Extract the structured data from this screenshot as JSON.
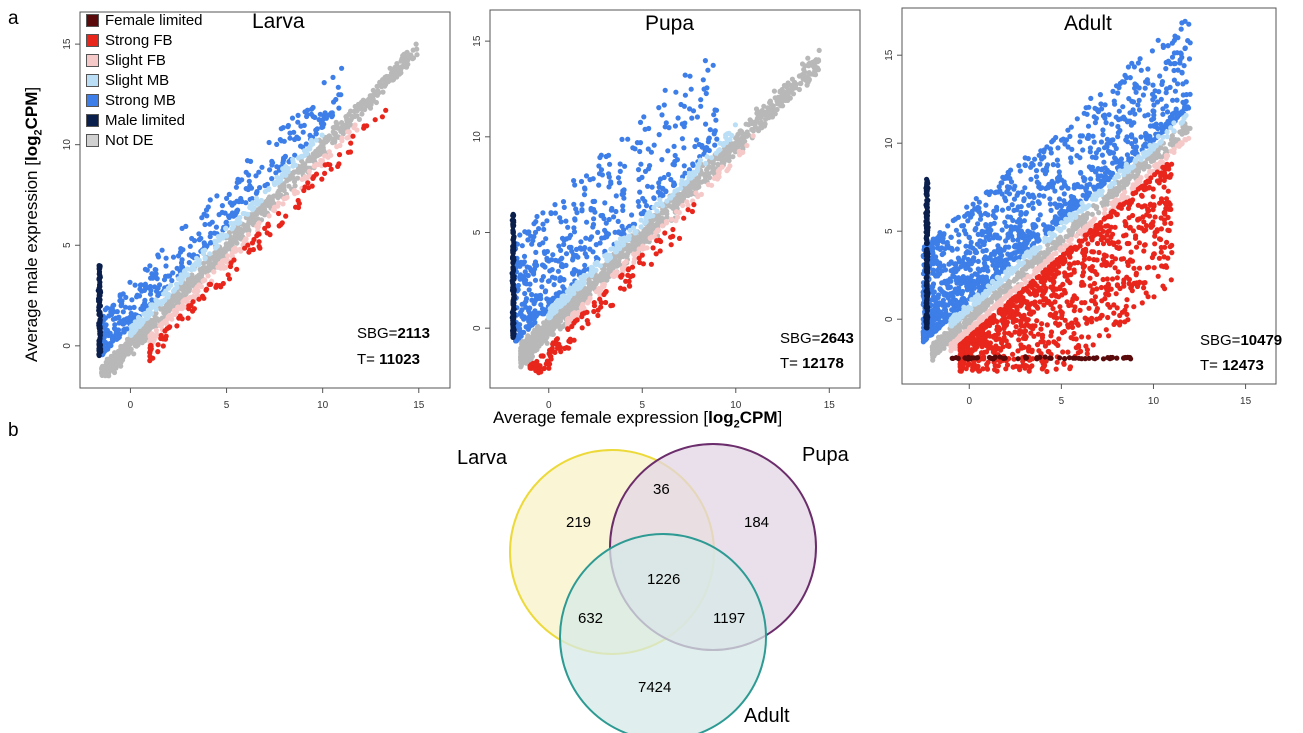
{
  "figure": {
    "panel_a_letter": "a",
    "panel_b_letter": "b",
    "y_axis_label_prefix": "Average male expression [",
    "y_axis_label_bold": "log",
    "y_axis_label_sub": "2",
    "y_axis_label_bold2": "CPM",
    "y_axis_label_suffix": "]",
    "x_axis_label_prefix": "Average female expression [",
    "x_axis_label_bold": "log",
    "x_axis_label_sub": "2",
    "x_axis_label_bold2": "CPM",
    "x_axis_label_suffix": "]"
  },
  "legend": [
    {
      "label": "Female limited",
      "color": "#5a0a0a"
    },
    {
      "label": "Strong FB",
      "color": "#e8261c"
    },
    {
      "label": "Slight FB",
      "color": "#f6c9c9"
    },
    {
      "label": "Slight MB",
      "color": "#b9def5"
    },
    {
      "label": "Strong MB",
      "color": "#3d7ee8"
    },
    {
      "label": "Male limited",
      "color": "#0b1f4d"
    },
    {
      "label": "Not DE",
      "color": "#d0d0d0"
    }
  ],
  "chart_data": [
    {
      "type": "scatter",
      "title": "Larva",
      "x_ticks": [
        "0",
        "5",
        "10",
        "15"
      ],
      "y_ticks": [
        "0",
        "5",
        "10",
        "15"
      ],
      "xlim": [
        -2,
        16
      ],
      "ylim": [
        -1.5,
        16
      ],
      "sbg_label": "SBG=",
      "sbg_value": "2113",
      "t_label": "T= ",
      "t_value": "11023",
      "trend": {
        "from": [
          0,
          0
        ],
        "to": [
          15,
          14.8
        ]
      },
      "series": [
        {
          "name": "Not DE",
          "color": "#b8b8b8",
          "spread": 0.7,
          "n": 900,
          "xrange": [
            -1.5,
            15
          ]
        },
        {
          "name": "Strong MB",
          "color": "#3d7ee8",
          "above": [
            1.0,
            3.2
          ],
          "n": 380,
          "xrange": [
            -1.5,
            11
          ]
        },
        {
          "name": "Slight MB",
          "color": "#b9def5",
          "above": [
            0.5,
            1.0
          ],
          "n": 200,
          "xrange": [
            0,
            10
          ]
        },
        {
          "name": "Slight FB",
          "color": "#f6c9c9",
          "below": [
            0.5,
            1.0
          ],
          "n": 150,
          "xrange": [
            1,
            12
          ]
        },
        {
          "name": "Strong FB",
          "color": "#e8261c",
          "below": [
            1.0,
            1.8
          ],
          "n": 110,
          "xrange": [
            1,
            13.5
          ]
        },
        {
          "name": "Male limited",
          "color": "#0b1f4d",
          "column": -1.6,
          "yrange": [
            -0.5,
            4
          ],
          "n": 100
        }
      ]
    },
    {
      "type": "scatter",
      "title": "Pupa",
      "x_ticks": [
        "0",
        "5",
        "10",
        "15"
      ],
      "y_ticks": [
        "0",
        "5",
        "10",
        "15"
      ],
      "xlim": [
        -2.5,
        16
      ],
      "ylim": [
        -2.5,
        16
      ],
      "sbg_label": "SBG=",
      "sbg_value": "2643",
      "t_label": "T= ",
      "t_value": "12178",
      "trend": {
        "from": [
          0,
          0
        ],
        "to": [
          14.5,
          14
        ]
      },
      "series": [
        {
          "name": "Not DE",
          "color": "#b8b8b8",
          "spread": 0.9,
          "n": 1000,
          "xrange": [
            -1.5,
            14.5
          ]
        },
        {
          "name": "Strong MB",
          "color": "#3d7ee8",
          "above": [
            1.0,
            6.5
          ],
          "n": 500,
          "xrange": [
            -1.8,
            9
          ]
        },
        {
          "name": "Slight MB",
          "color": "#b9def5",
          "above": [
            0.5,
            1.0
          ],
          "n": 200,
          "xrange": [
            0,
            10
          ]
        },
        {
          "name": "Slight FB",
          "color": "#f6c9c9",
          "below": [
            0.5,
            1.0
          ],
          "n": 120,
          "xrange": [
            1,
            11
          ]
        },
        {
          "name": "Strong FB",
          "color": "#e8261c",
          "below": [
            1.0,
            2.2
          ],
          "n": 120,
          "xrange": [
            -1,
            8
          ]
        },
        {
          "name": "Male limited",
          "color": "#0b1f4d",
          "column": -1.9,
          "yrange": [
            -0.5,
            6
          ],
          "n": 140
        }
      ]
    },
    {
      "type": "scatter",
      "title": "Adult",
      "x_ticks": [
        "0",
        "5",
        "10",
        "15"
      ],
      "y_ticks": [
        "0",
        "5",
        "10",
        "15"
      ],
      "xlim": [
        -3,
        16
      ],
      "ylim": [
        -3,
        17
      ],
      "sbg_label": "SBG=",
      "sbg_value": "10479",
      "t_label": "T= ",
      "t_value": "12473",
      "trend": {
        "from": [
          0,
          0
        ],
        "to": [
          12,
          11
        ]
      },
      "series": [
        {
          "name": "Not DE",
          "color": "#b8b8b8",
          "spread": 0.6,
          "n": 500,
          "xrange": [
            -2,
            12
          ]
        },
        {
          "name": "Strong MB",
          "color": "#3d7ee8",
          "above": [
            1.0,
            6.5
          ],
          "n": 1300,
          "xrange": [
            -2.5,
            12
          ]
        },
        {
          "name": "Slight MB",
          "color": "#b9def5",
          "above": [
            0.5,
            1.0
          ],
          "n": 250,
          "xrange": [
            -1,
            12
          ]
        },
        {
          "name": "Slight FB",
          "color": "#f6c9c9",
          "below": [
            0.5,
            1.0
          ],
          "n": 250,
          "xrange": [
            -1,
            12
          ]
        },
        {
          "name": "Strong FB",
          "color": "#e8261c",
          "below": [
            1.0,
            8
          ],
          "n": 1300,
          "xrange": [
            -0.5,
            11
          ]
        },
        {
          "name": "Male limited",
          "color": "#0b1f4d",
          "column": -2.3,
          "yrange": [
            -0.5,
            8
          ],
          "n": 180
        },
        {
          "name": "Female limited",
          "color": "#5a0a0a",
          "row": -2.2,
          "xrange": [
            -1,
            9
          ],
          "n": 60
        }
      ]
    }
  ],
  "venn": {
    "sets": [
      {
        "label": "Larva",
        "stroke": "#ecd93a",
        "fill": "#f8f2c5"
      },
      {
        "label": "Pupa",
        "stroke": "#6b2d6b",
        "fill": "#e3d6e6"
      },
      {
        "label": "Adult",
        "stroke": "#2d9a93",
        "fill": "#d6e9e7"
      }
    ],
    "regions": {
      "larva_only": "219",
      "larva_pupa": "36",
      "pupa_only": "184",
      "all_three": "1226",
      "larva_adult": "632",
      "pupa_adult": "1197",
      "adult_only": "7424"
    }
  }
}
